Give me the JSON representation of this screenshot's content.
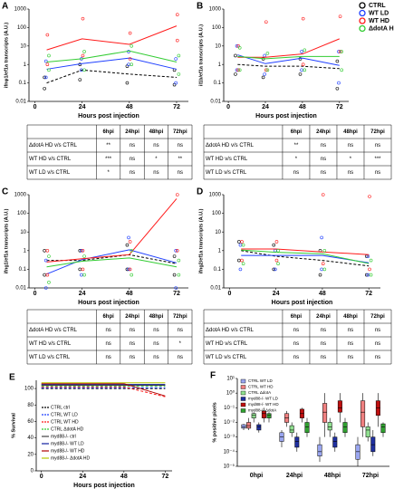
{
  "chart_data": [
    {
      "panel": "A",
      "type": "line",
      "log_y": true,
      "y_label": "ifnφ1/ef1a transcripts (A.U.)",
      "x_label": "Hours post injection",
      "xlim": [
        -3,
        78
      ],
      "xticks": [
        0,
        24,
        48,
        72
      ],
      "ylim": [
        0.01,
        1000
      ],
      "yticks": [
        0.01,
        0.1,
        1,
        10,
        100,
        1000
      ],
      "x": [
        6,
        24,
        48,
        72
      ],
      "point_x": [
        6,
        6,
        24,
        24,
        48,
        48,
        72,
        72
      ],
      "series": [
        {
          "name": "CTRL",
          "color": "#000000",
          "dashed": true,
          "values": [
            0.1,
            0.5,
            0.3,
            0.2
          ],
          "points": [
            0.05,
            0.2,
            0.15,
            1,
            0.1,
            0.8,
            0.08,
            0.5
          ]
        },
        {
          "name": "WT LD",
          "color": "#1f3fff",
          "values": [
            0.5,
            1,
            2,
            0.5
          ],
          "points": [
            0.2,
            1.5,
            0.5,
            2,
            1,
            5,
            0.1,
            2
          ]
        },
        {
          "name": "WT HD",
          "color": "#ff1a1a",
          "values": [
            5,
            20,
            10,
            100
          ],
          "points": [
            1,
            40,
            3,
            300,
            2,
            50,
            20,
            500
          ]
        },
        {
          "name": "ΔdotA HD",
          "color": "#33cc33",
          "values": [
            1,
            1.5,
            4,
            1
          ],
          "points": [
            0.5,
            3,
            0.5,
            5,
            1,
            10,
            0.3,
            3
          ]
        }
      ],
      "table": {
        "header": [
          "6hpi",
          "24hpi",
          "48hpi",
          "72hpi"
        ],
        "rows": [
          {
            "label": "ΔdotA HD v/s CTRL",
            "cells": [
              "**",
              "ns",
              "ns",
              "ns"
            ]
          },
          {
            "label": "WT HD v/s CTRL",
            "cells": [
              "***",
              "ns",
              "*",
              "**"
            ]
          },
          {
            "label": "WT LD v/s CTRL",
            "cells": [
              "*",
              "ns",
              "ns",
              "ns"
            ]
          }
        ]
      }
    },
    {
      "panel": "B",
      "type": "line",
      "log_y": true,
      "y_label": "il1b/ef1a transcripts (A.U.)",
      "x_label": "Hours post injection",
      "legend": "right",
      "xlim": [
        -3,
        78
      ],
      "xticks": [
        0,
        24,
        48,
        72
      ],
      "ylim": [
        0.01,
        1000
      ],
      "yticks": [
        0.01,
        0.1,
        1,
        10,
        100,
        1000
      ],
      "x": [
        6,
        24,
        48,
        72
      ],
      "point_x": [
        6,
        6,
        24,
        24,
        48,
        48,
        72,
        72
      ],
      "series": [
        {
          "name": "CTRL",
          "color": "#000000",
          "dashed": true,
          "values": [
            1,
            0.8,
            0.8,
            0.6
          ],
          "points": [
            0.3,
            3,
            0.2,
            2,
            0.3,
            2,
            0.05,
            1.5
          ]
        },
        {
          "name": "WT LD",
          "color": "#1f3fff",
          "values": [
            3,
            1,
            2,
            0.8
          ],
          "points": [
            0.5,
            10,
            0.3,
            3,
            0.5,
            5,
            0.1,
            5
          ]
        },
        {
          "name": "WT HD",
          "color": "#ff1a1a",
          "values": [
            2,
            2,
            3,
            20
          ],
          "points": [
            0.5,
            10,
            0.5,
            200,
            1,
            300,
            5,
            400
          ]
        },
        {
          "name": "ΔdotA HD",
          "color": "#33cc33",
          "values": [
            2,
            1.5,
            2,
            2
          ],
          "points": [
            0.5,
            8,
            0.5,
            4,
            0.5,
            6,
            0.5,
            5
          ]
        }
      ],
      "table": {
        "header": [
          "6hpi",
          "24hpi",
          "48hpi",
          "72hpi"
        ],
        "rows": [
          {
            "label": "ΔdotA HD v/s CTRL",
            "cells": [
              "**",
              "ns",
              "ns",
              "ns"
            ]
          },
          {
            "label": "WT HD v/s CTRL",
            "cells": [
              "*",
              "ns",
              "*",
              "***"
            ]
          },
          {
            "label": "WT LD v/s CTRL",
            "cells": [
              "ns",
              "ns",
              "ns",
              "ns"
            ]
          }
        ]
      }
    },
    {
      "panel": "C",
      "type": "line",
      "log_y": true,
      "y_label": "ifng1/ef1a transcripts (A.U.)",
      "x_label": "Hours post injection",
      "xlim": [
        -3,
        78
      ],
      "xticks": [
        0,
        24,
        48,
        72
      ],
      "ylim": [
        0.01,
        1000
      ],
      "yticks": [
        0.01,
        0.1,
        1,
        10,
        100,
        1000
      ],
      "x": [
        6,
        24,
        48,
        72
      ],
      "point_x": [
        6,
        6,
        24,
        24,
        48,
        48,
        72,
        72
      ],
      "series": [
        {
          "name": "CTRL",
          "color": "#000000",
          "dashed": true,
          "values": [
            0.3,
            0.3,
            0.6,
            0.2
          ],
          "points": [
            0.05,
            1,
            0.1,
            1,
            0.1,
            2,
            0.05,
            0.5
          ]
        },
        {
          "name": "WT LD",
          "color": "#1f3fff",
          "values": [
            0.05,
            0.3,
            1,
            0.2
          ],
          "points": [
            0.01,
            0.3,
            0.05,
            1,
            0.1,
            5,
            0.01,
            1
          ]
        },
        {
          "name": "WT HD",
          "color": "#ff1a1a",
          "values": [
            0.2,
            0.3,
            0.5,
            500
          ],
          "points": [
            0.05,
            1,
            0.1,
            1,
            0.1,
            3,
            1,
            1000
          ]
        },
        {
          "name": "ΔdotA HD",
          "color": "#33cc33",
          "values": [
            0.1,
            0.2,
            0.3,
            0.1
          ],
          "points": [
            0.02,
            0.5,
            0.05,
            0.5,
            0.05,
            1,
            0.05,
            0.3
          ]
        }
      ],
      "table": {
        "header": [
          "6hpi",
          "24hpi",
          "48hpi",
          "72hpi"
        ],
        "rows": [
          {
            "label": "ΔdotA HD v/s CTRL",
            "cells": [
              "ns",
              "ns",
              "ns",
              "ns"
            ]
          },
          {
            "label": "WT HD v/s CTRL",
            "cells": [
              "ns",
              "ns",
              "ns",
              "*"
            ]
          },
          {
            "label": "WT LD v/s CTRL",
            "cells": [
              "ns",
              "ns",
              "ns",
              "ns"
            ]
          }
        ]
      }
    },
    {
      "panel": "D",
      "type": "line",
      "log_y": true,
      "y_label": "ifng2/ef1a transcripts (A.U.)",
      "x_label": "Hours post injection",
      "xlim": [
        -3,
        78
      ],
      "xticks": [
        0,
        24,
        48,
        72
      ],
      "ylim": [
        0.01,
        1000
      ],
      "yticks": [
        0.01,
        0.1,
        1,
        10,
        100,
        1000
      ],
      "x": [
        6,
        24,
        48,
        72
      ],
      "point_x": [
        6,
        6,
        24,
        24,
        48,
        48,
        72,
        72
      ],
      "series": [
        {
          "name": "CTRL",
          "color": "#000000",
          "dashed": true,
          "values": [
            1,
            0.5,
            0.3,
            0.15
          ],
          "points": [
            0.3,
            3,
            0.1,
            2,
            0.05,
            1,
            0.05,
            0.5
          ]
        },
        {
          "name": "WT LD",
          "color": "#1f3fff",
          "values": [
            0.5,
            0.5,
            0.5,
            0.2
          ],
          "points": [
            0.1,
            2,
            0.1,
            1,
            0.1,
            5,
            0.05,
            0.5
          ]
        },
        {
          "name": "WT HD",
          "color": "#ff1a1a",
          "values": [
            1,
            1,
            0.7,
            0.5
          ],
          "points": [
            0.3,
            3,
            0.3,
            3,
            0.2,
            1000,
            0.1,
            800
          ]
        },
        {
          "name": "ΔdotA HD",
          "color": "#33cc33",
          "values": [
            0.8,
            0.6,
            0.5,
            0.15
          ],
          "points": [
            0.2,
            2,
            0.2,
            1,
            0.1,
            1,
            0.05,
            0.3
          ]
        }
      ],
      "table": {
        "header": [
          "6hpi",
          "24hpi",
          "48hpi",
          "72hpi"
        ],
        "rows": [
          {
            "label": "ΔdotA HD v/s CTRL",
            "cells": [
              "ns",
              "ns",
              "ns",
              "ns"
            ]
          },
          {
            "label": "WT HD v/s CTRL",
            "cells": [
              "ns",
              "ns",
              "ns",
              "ns"
            ]
          },
          {
            "label": "WT LD v/s CTRL",
            "cells": [
              "ns",
              "ns",
              "ns",
              "ns"
            ]
          }
        ]
      }
    },
    {
      "panel": "E",
      "type": "line",
      "log_y": false,
      "y_label": "% Survival",
      "x_label": "Hours post injection",
      "legend": "lower-left",
      "xlim": [
        -3,
        76
      ],
      "xticks": [
        0,
        24,
        48,
        72
      ],
      "ylim": [
        0,
        110
      ],
      "yticks": [
        0,
        20,
        40,
        60,
        80,
        100
      ],
      "x": [
        0,
        24,
        48,
        72
      ],
      "series": [
        {
          "name": "CTRL ctrl",
          "color": "#000000",
          "dashed": true,
          "values": [
            100,
            100,
            100,
            100
          ]
        },
        {
          "name": "CTRL WT LD",
          "color": "#1f3fff",
          "dashed": true,
          "values": [
            100,
            100,
            100,
            100
          ]
        },
        {
          "name": "CTRL WT HD",
          "color": "#ff1a1a",
          "dashed": true,
          "values": [
            100,
            100,
            100,
            88
          ]
        },
        {
          "name": "CTRL ΔdotA HD",
          "color": "#33cc33",
          "dashed": true,
          "values": [
            100,
            100,
            100,
            100
          ]
        },
        {
          "name": "myd88-/- ctrl",
          "color": "#444444",
          "values": [
            100,
            100,
            100,
            100
          ]
        },
        {
          "name": "myd88-/- WT LD",
          "color": "#1020a0",
          "values": [
            100,
            100,
            100,
            100
          ]
        },
        {
          "name": "myd88-/- WT HD",
          "color": "#b00000",
          "values": [
            100,
            100,
            100,
            85
          ]
        },
        {
          "name": "myd88-/- ΔdotA HD",
          "color": "#b8c800",
          "values": [
            100,
            100,
            100,
            100
          ]
        }
      ]
    },
    {
      "panel": "F",
      "type": "box",
      "log_y": true,
      "y_label": "% positive pixels",
      "legend": "top-left",
      "categories": [
        "0hpi",
        "24hpi",
        "48hpi",
        "72hpi"
      ],
      "ylim": [
        1e-05,
        10
      ],
      "yticks": [
        {
          "value": 1e-05,
          "label": "10⁻⁵"
        },
        {
          "value": 0.0001,
          "label": "10⁻⁴"
        },
        {
          "value": 0.001,
          "label": "10⁻³"
        },
        {
          "value": 0.01,
          "label": "10⁻²"
        },
        {
          "value": 0.1,
          "label": "10⁻¹"
        },
        {
          "value": 1,
          "label": "10⁰"
        },
        {
          "value": 10,
          "label": "10¹"
        }
      ],
      "series": [
        {
          "name": "CTRL WT LD",
          "color": "#9aa6f0",
          "min": [
            0.003,
            0.0002,
            2e-05,
            1e-05
          ],
          "q1": [
            0.004,
            0.0005,
            5e-05,
            3e-05
          ],
          "median": [
            0.005,
            0.001,
            0.0001,
            0.0001
          ],
          "q3": [
            0.007,
            0.002,
            0.0003,
            0.0003
          ],
          "max": [
            0.008,
            0.003,
            0.001,
            0.001
          ]
        },
        {
          "name": "CTRL WT HD",
          "color": "#f08080",
          "min": [
            0.003,
            0.005,
            0.001,
            0.001
          ],
          "q1": [
            0.004,
            0.01,
            0.01,
            0.005
          ],
          "median": [
            0.006,
            0.02,
            0.05,
            0.05
          ],
          "q3": [
            0.01,
            0.04,
            0.2,
            0.3
          ],
          "max": [
            0.02,
            0.06,
            1,
            1
          ]
        },
        {
          "name": "CTRL ΔdotA",
          "color": "#90e090",
          "min": [
            0.01,
            0.001,
            0.001,
            0.0005
          ],
          "q1": [
            0.02,
            0.002,
            0.003,
            0.001
          ],
          "median": [
            0.03,
            0.003,
            0.005,
            0.003
          ],
          "q3": [
            0.04,
            0.006,
            0.01,
            0.005
          ],
          "max": [
            0.05,
            0.01,
            0.02,
            0.01
          ]
        },
        {
          "name": "myd88-/- WT LD",
          "color": "#2030a0",
          "min": [
            0.002,
            0.0001,
            0.0001,
            5e-05
          ],
          "q1": [
            0.003,
            0.0002,
            0.0002,
            0.0001
          ],
          "median": [
            0.005,
            0.0005,
            0.0005,
            0.0003
          ],
          "q3": [
            0.007,
            0.001,
            0.001,
            0.001
          ],
          "max": [
            0.01,
            0.002,
            0.002,
            0.003
          ]
        },
        {
          "name": "myd88-/- WT HD",
          "color": "#c01010",
          "min": [
            0.01,
            0.01,
            0.01,
            0.005
          ],
          "q1": [
            0.02,
            0.02,
            0.05,
            0.03
          ],
          "median": [
            0.04,
            0.04,
            0.1,
            0.1
          ],
          "q3": [
            0.06,
            0.08,
            0.3,
            0.3
          ],
          "max": [
            0.1,
            0.1,
            1,
            1
          ]
        },
        {
          "name": "myd88-/- ΔdotA",
          "color": "#30a030",
          "min": [
            0.01,
            0.001,
            0.001,
            0.001
          ],
          "q1": [
            0.02,
            0.002,
            0.002,
            0.002
          ],
          "median": [
            0.03,
            0.005,
            0.005,
            0.005
          ],
          "q3": [
            0.04,
            0.01,
            0.01,
            0.008
          ],
          "max": [
            0.05,
            0.02,
            0.02,
            0.01
          ]
        }
      ]
    }
  ]
}
